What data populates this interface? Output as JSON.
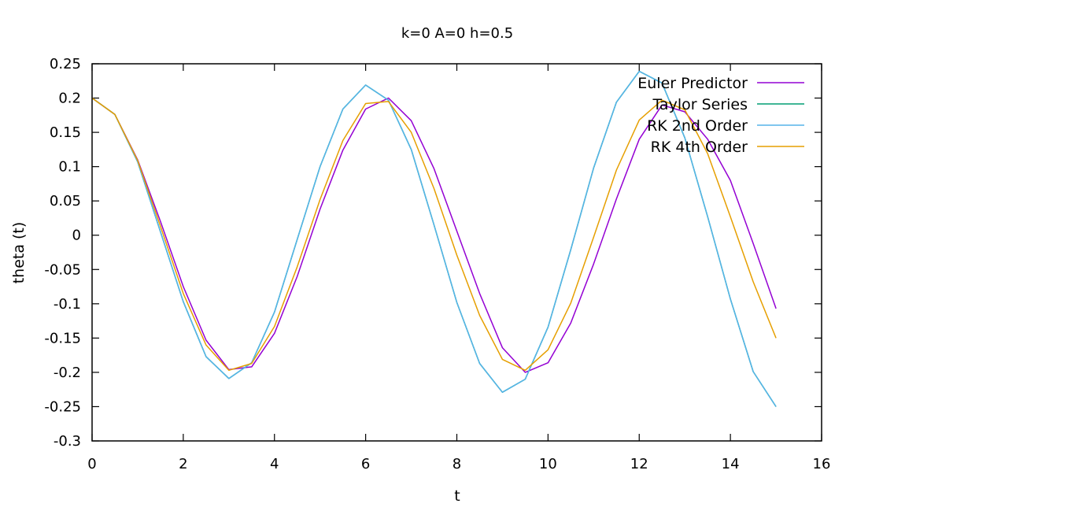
{
  "chart_data": {
    "type": "line",
    "title": "k=0 A=0 h=0.5",
    "xlabel": "t",
    "ylabel": "theta (t)",
    "xlim": [
      0,
      16
    ],
    "ylim": [
      -0.3,
      0.25
    ],
    "xticks": [
      0,
      2,
      4,
      6,
      8,
      10,
      12,
      14,
      16
    ],
    "yticks": [
      0.25,
      0.2,
      0.15,
      0.1,
      0.05,
      0,
      -0.05,
      -0.1,
      -0.15,
      -0.2,
      -0.25,
      -0.3
    ],
    "xtick_labels": [
      "0",
      "2",
      "4",
      "6",
      "8",
      "10",
      "12",
      "14",
      "16"
    ],
    "ytick_labels": [
      "0.25",
      "0.2",
      "0.15",
      "0.1",
      "0.05",
      "0",
      "-0.05",
      "-0.1",
      "-0.15",
      "-0.2",
      "-0.25",
      "-0.3"
    ],
    "grid": false,
    "legend_position": "top-right",
    "x": [
      0,
      0.5,
      1,
      1.5,
      2,
      2.5,
      3,
      3.5,
      4,
      4.5,
      5,
      5.5,
      6,
      6.5,
      7,
      7.5,
      8,
      8.5,
      9,
      9.5,
      10,
      10.5,
      11,
      11.5,
      12,
      12.5,
      13,
      13.5,
      14,
      14.5,
      15
    ],
    "series": [
      {
        "name": "Euler Predictor",
        "color": "#9400d3",
        "values": [
          0.2,
          0.176,
          0.11,
          0.02,
          -0.075,
          -0.153,
          -0.196,
          -0.192,
          -0.143,
          -0.06,
          0.038,
          0.124,
          0.184,
          0.2,
          0.167,
          0.097,
          0.006,
          -0.085,
          -0.164,
          -0.2,
          -0.186,
          -0.128,
          -0.042,
          0.053,
          0.14,
          0.19,
          0.18,
          0.14,
          0.08,
          -0.012,
          -0.107
        ]
      },
      {
        "name": "Taylor Series",
        "color": "#009e73",
        "values": [
          0.2,
          0.176,
          0.107,
          0.005,
          -0.097,
          -0.177,
          -0.209,
          -0.186,
          -0.112,
          -0.006,
          0.1,
          0.184,
          0.219,
          0.197,
          0.125,
          0.015,
          -0.098,
          -0.187,
          -0.229,
          -0.21,
          -0.134,
          -0.021,
          0.098,
          0.194,
          0.239,
          0.222,
          0.142,
          0.027,
          -0.093,
          -0.199,
          -0.25
        ]
      },
      {
        "name": "RK 2nd Order",
        "color": "#56b4e9",
        "values": [
          0.2,
          0.176,
          0.107,
          0.005,
          -0.097,
          -0.177,
          -0.209,
          -0.186,
          -0.112,
          -0.006,
          0.1,
          0.184,
          0.219,
          0.197,
          0.125,
          0.015,
          -0.098,
          -0.187,
          -0.229,
          -0.21,
          -0.134,
          -0.021,
          0.098,
          0.194,
          0.239,
          0.222,
          0.142,
          0.027,
          -0.093,
          -0.199,
          -0.25
        ]
      },
      {
        "name": "RK 4th Order",
        "color": "#e69f00",
        "values": [
          0.2,
          0.176,
          0.109,
          0.013,
          -0.085,
          -0.16,
          -0.197,
          -0.187,
          -0.133,
          -0.046,
          0.052,
          0.138,
          0.192,
          0.195,
          0.15,
          0.068,
          -0.029,
          -0.117,
          -0.181,
          -0.197,
          -0.167,
          -0.099,
          -0.003,
          0.095,
          0.168,
          0.197,
          0.183,
          0.119,
          0.027,
          -0.068,
          -0.15
        ]
      }
    ]
  }
}
